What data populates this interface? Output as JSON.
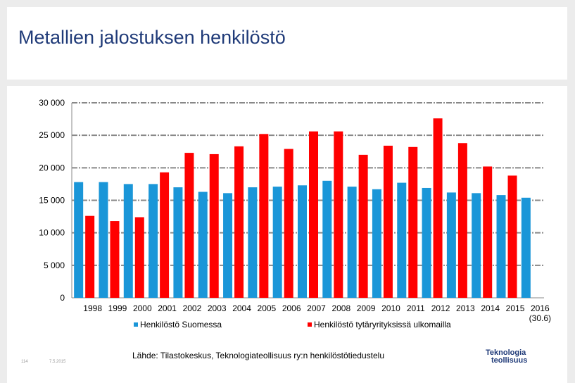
{
  "slide": {
    "title": "Metallien jalostuksen henkilöstö",
    "source": "Lähde: Tilastokeskus, Teknologiateollisuus ry:n henkilöstötiedustelu",
    "page_number": "114",
    "date": "7.5.2015",
    "logo_line1": "Teknologia",
    "logo_line2": "teollisuus"
  },
  "chart_data": {
    "type": "bar",
    "title": "",
    "xlabel": "",
    "ylabel": "",
    "ylim": [
      0,
      30000
    ],
    "yticks": [
      0,
      5000,
      10000,
      15000,
      20000,
      25000,
      30000
    ],
    "ytick_labels": [
      "0",
      "5 000",
      "10 000",
      "15 000",
      "20 000",
      "25 000",
      "30 000"
    ],
    "categories": [
      "1998",
      "1999",
      "2000",
      "2001",
      "2002",
      "2003",
      "2004",
      "2005",
      "2006",
      "2007",
      "2008",
      "2009",
      "2010",
      "2011",
      "2012",
      "2013",
      "2014",
      "2015",
      "2016"
    ],
    "category_note": "(30.6)",
    "series": [
      {
        "name": "Henkilöstö Suomessa",
        "color": "#1a96d8",
        "values": [
          17800,
          17800,
          17500,
          17500,
          17000,
          16300,
          16100,
          17000,
          17100,
          17300,
          18000,
          17100,
          16700,
          17700,
          16900,
          16200,
          16100,
          15800,
          15400
        ]
      },
      {
        "name": "Henkilöstö tytäryrityksissä ulkomailla",
        "color": "#ff0000",
        "values": [
          12600,
          11800,
          12400,
          19300,
          22300,
          22100,
          23300,
          25200,
          22900,
          25600,
          25600,
          22000,
          23400,
          23200,
          27600,
          23800,
          20200,
          18800,
          null
        ]
      }
    ],
    "grid": true,
    "legend": "bottom"
  }
}
